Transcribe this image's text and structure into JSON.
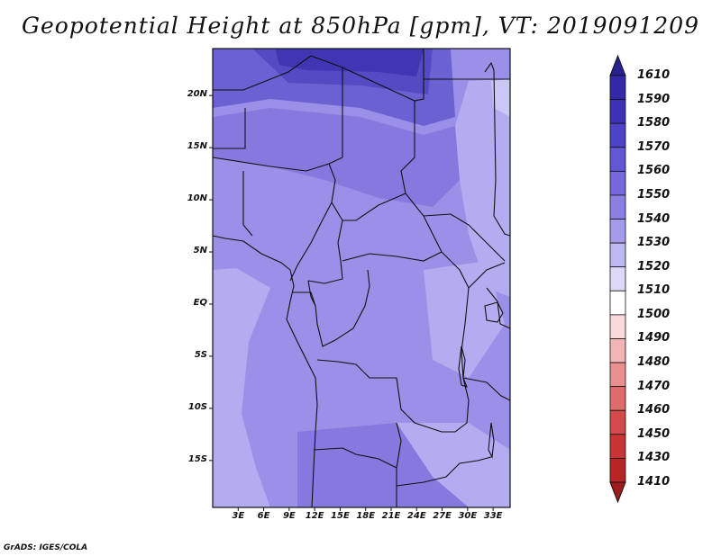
{
  "title": "Geopotential Height at 850hPa [gpm], VT: 2019091209",
  "credit": "GrADS: IGES/COLA",
  "map": {
    "lat_labels": [
      "20N",
      "15N",
      "10N",
      "5N",
      "EQ",
      "5S",
      "10S",
      "15S"
    ],
    "lat_values": [
      20,
      15,
      10,
      5,
      0,
      -5,
      -10,
      -15
    ],
    "lon_labels": [
      "3E",
      "6E",
      "9E",
      "12E",
      "15E",
      "18E",
      "21E",
      "24E",
      "27E",
      "30E",
      "33E"
    ],
    "lon_values": [
      3,
      6,
      9,
      12,
      15,
      18,
      21,
      24,
      27,
      30,
      33
    ],
    "lat_range": [
      -19.5,
      24.5
    ],
    "lon_range": [
      0,
      35
    ]
  },
  "colorbar": {
    "levels": [
      "1610",
      "1590",
      "1580",
      "1570",
      "1560",
      "1550",
      "1540",
      "1530",
      "1520",
      "1510",
      "1500",
      "1490",
      "1480",
      "1470",
      "1460",
      "1450",
      "1430",
      "1410"
    ],
    "colors": [
      "#27208f",
      "#3328a8",
      "#3d31b8",
      "#4d43c7",
      "#6257d4",
      "#7468dc",
      "#8a80e4",
      "#a49bec",
      "#bdb7f2",
      "#dcd9f8",
      "#ffffff",
      "#f9d9d9",
      "#f1b5b5",
      "#e89090",
      "#de6c6c",
      "#d44a4a",
      "#c93535",
      "#b82525",
      "#9e1b1b"
    ]
  },
  "field_colors": {
    "c1530": "#b3acf0",
    "c1540": "#9a90e8",
    "c1550": "#8479de",
    "c1560": "#6c61d2",
    "c1570": "#5549c4",
    "c1580": "#4135b3",
    "c1520": "#cbc7f5",
    "coast": "#111111"
  }
}
